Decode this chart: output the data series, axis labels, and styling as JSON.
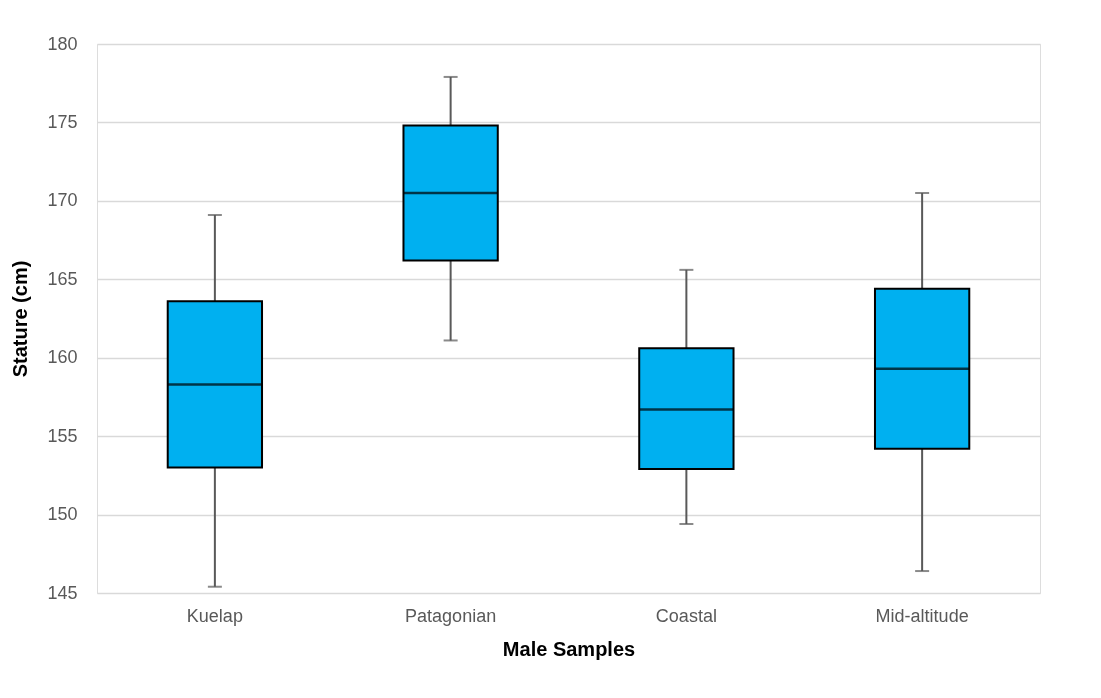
{
  "chart_data": {
    "type": "box",
    "xlabel": "Male Samples",
    "ylabel": "Stature (cm)",
    "categories": [
      "Kuelap",
      "Patagonian",
      "Coastal",
      "Mid-altitude"
    ],
    "color": "#00b0f0",
    "boxes": [
      {
        "low": 145.4,
        "q1": 153.0,
        "median": 158.3,
        "q3": 163.6,
        "high": 169.1
      },
      {
        "low": 161.1,
        "q1": 166.2,
        "median": 170.5,
        "q3": 174.8,
        "high": 177.9
      },
      {
        "low": 149.4,
        "q1": 152.9,
        "median": 156.7,
        "q3": 160.6,
        "high": 165.6
      },
      {
        "low": 146.4,
        "q1": 154.2,
        "median": 159.3,
        "q3": 164.4,
        "high": 170.5
      }
    ],
    "ylim": [
      145,
      180
    ],
    "yticks": [
      145,
      150,
      155,
      160,
      165,
      170,
      175,
      180
    ],
    "grid": "y"
  }
}
